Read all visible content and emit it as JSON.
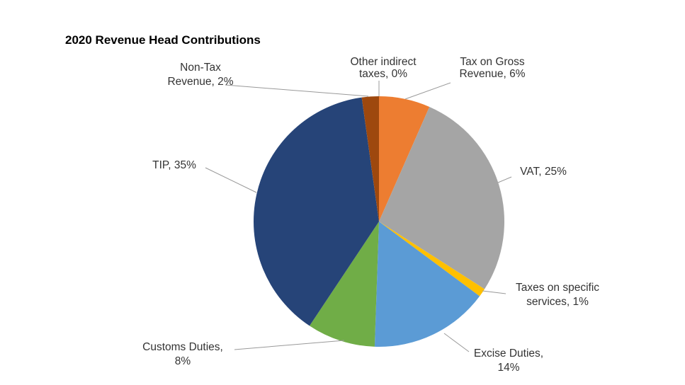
{
  "chart_data": {
    "type": "pie",
    "title": "2020 Revenue Head Contributions",
    "start_angle_deg": 0,
    "direction": "clockwise",
    "slices": [
      {
        "name": "Other indirect taxes",
        "value": 0,
        "label": [
          "Other indirect",
          "taxes, 0%"
        ],
        "color": "#843C0C"
      },
      {
        "name": "Tax on Gross Revenue",
        "value": 6,
        "label": [
          "Tax on Gross",
          "Revenue, 6%"
        ],
        "color": "#ED7D31"
      },
      {
        "name": "VAT",
        "value": 25,
        "label": [
          "VAT, 25%"
        ],
        "color": "#A5A5A5"
      },
      {
        "name": "Taxes on specific services",
        "value": 1,
        "label": [
          "Taxes on specific",
          "services, 1%"
        ],
        "color": "#FFC000"
      },
      {
        "name": "Excise Duties",
        "value": 14,
        "label": [
          "Excise Duties,",
          "14%"
        ],
        "color": "#5B9BD5"
      },
      {
        "name": "Customs Duties",
        "value": 8,
        "label": [
          "Customs Duties,",
          "8%"
        ],
        "color": "#70AD47"
      },
      {
        "name": "TIP",
        "value": 35,
        "label": [
          "TIP, 35%"
        ],
        "color": "#264478"
      },
      {
        "name": "Non-Tax Revenue",
        "value": 2,
        "label": [
          "Non-Tax",
          "Revenue, 2%"
        ],
        "color": "#9E480E"
      }
    ],
    "legend": "none"
  }
}
